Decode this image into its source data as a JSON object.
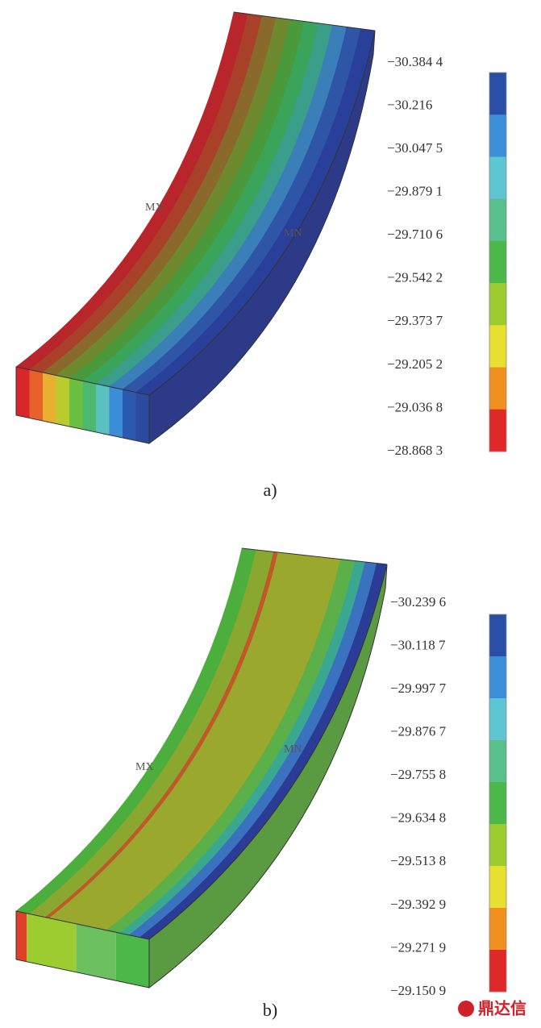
{
  "figure_a": {
    "label": "a)",
    "max_marker": "MX",
    "min_marker": "MN",
    "legend": [
      "−30.384 4",
      "−30.216",
      "−30.047 5",
      "−29.879 1",
      "−29.710 6",
      "−29.542 2",
      "−29.373 7",
      "−29.205 2",
      "−29.036 8",
      "−28.868 3"
    ]
  },
  "figure_b": {
    "label": "b)",
    "max_marker": "MX",
    "min_marker": "MN",
    "legend": [
      "−30.239 6",
      "−30.118 7",
      "−29.997 7",
      "−29.876 7",
      "−29.755 8",
      "−29.634 8",
      "−29.513 8",
      "−29.392 9",
      "−29.271 9",
      "−29.150 9"
    ]
  },
  "watermark": "鼎达信"
}
